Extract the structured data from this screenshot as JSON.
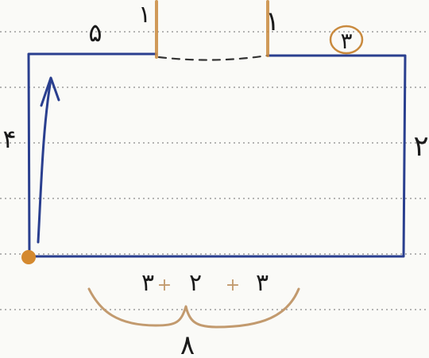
{
  "colors": {
    "paper": "#fafaf7",
    "ruling": "#8a8a8a",
    "rectangle": "#2a3f8f",
    "orange_marks": "#c98a3e",
    "brace": "#c29a6e",
    "ink": "#1a1a1a",
    "start_dot": "#d4892f"
  },
  "labels": {
    "top_left": "۵",
    "top_tick_left": "۱",
    "top_tick_right": "۱",
    "top_right_circled": "۳",
    "left_side": "۴",
    "right_side": "۲",
    "bottom_left": "۳",
    "bottom_plus_left": "+",
    "bottom_middle": "۲",
    "bottom_plus_right": "+",
    "bottom_right": "۳",
    "brace_total": "۸"
  },
  "icons": {
    "arrow": "up-arrow-icon",
    "start_point": "dot-icon",
    "brace": "curly-brace-icon"
  }
}
